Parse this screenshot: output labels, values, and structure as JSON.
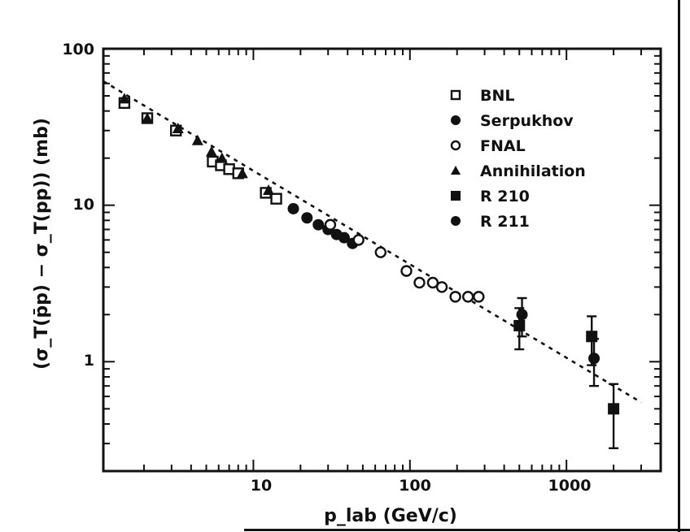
{
  "chart_data": {
    "type": "scatter",
    "title": "",
    "xlabel": "p_lab (GeV/c)",
    "ylabel": "(σ_T(p̄p) − σ_T(pp)) (mb)",
    "xscale": "log",
    "yscale": "log",
    "xlim": [
      1.1,
      4000
    ],
    "ylim": [
      0.2,
      100
    ],
    "xtick_labels": [
      "10",
      "100",
      "1000"
    ],
    "ytick_labels": [
      "100",
      "10",
      "1"
    ],
    "grid": false,
    "legend_position": "top-right",
    "series": [
      {
        "name": "BNL",
        "marker": "open-square",
        "x": [
          1.5,
          2.1,
          3.2,
          5.5,
          6.2,
          7.0,
          8.0,
          12.0,
          14.0
        ],
        "y": [
          45,
          36,
          30,
          19,
          18,
          17,
          16,
          12,
          11
        ]
      },
      {
        "name": "Serpukhov",
        "marker": "filled-circle",
        "x": [
          18,
          22,
          26,
          30,
          34,
          38,
          43
        ],
        "y": [
          9.5,
          8.3,
          7.5,
          7.0,
          6.5,
          6.2,
          5.7
        ]
      },
      {
        "name": "FNAL",
        "marker": "open-circle",
        "x": [
          31,
          47,
          65,
          95,
          115,
          140,
          160,
          195,
          235,
          275
        ],
        "y": [
          7.5,
          6.0,
          5.0,
          3.8,
          3.2,
          3.2,
          3.0,
          2.6,
          2.6,
          2.6
        ]
      },
      {
        "name": "Annihilation",
        "marker": "filled-triangle",
        "x": [
          1.5,
          2.1,
          3.3,
          4.4,
          5.4,
          6.3,
          8.5,
          12.5
        ],
        "y": [
          48,
          36,
          31,
          26,
          22,
          20,
          16,
          12.5
        ]
      },
      {
        "name": "R 210",
        "marker": "filled-square",
        "x": [
          500,
          1450,
          2000
        ],
        "y": [
          1.7,
          1.45,
          0.5
        ],
        "yerr": [
          0.5,
          0.5,
          0.22
        ]
      },
      {
        "name": "R 211",
        "marker": "filled-circle",
        "x": [
          520,
          1500
        ],
        "y": [
          2.0,
          1.05
        ],
        "yerr": [
          0.55,
          0.35
        ]
      }
    ],
    "fit_line": {
      "style": "dashed",
      "x": [
        1.1,
        3000
      ],
      "y": [
        62,
        0.55
      ]
    }
  }
}
